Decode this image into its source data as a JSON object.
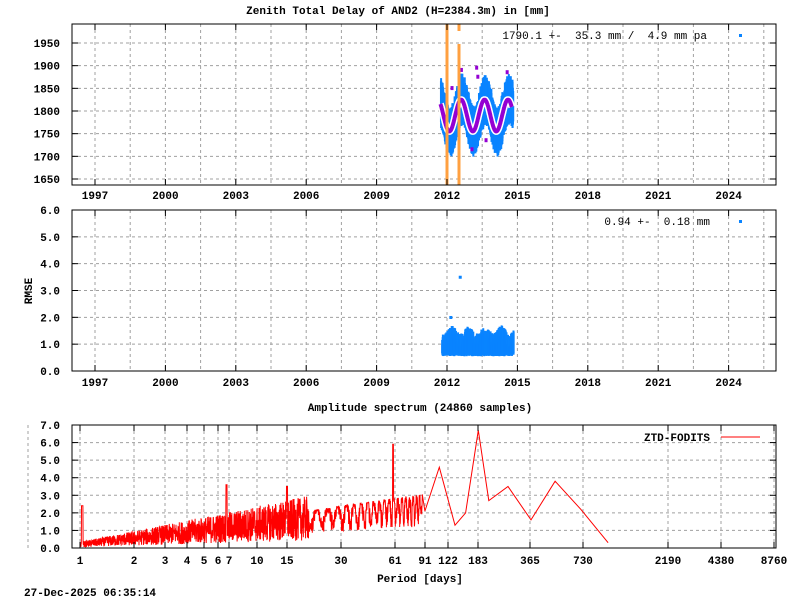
{
  "timestamp": "27-Dec-2025 06:35:14",
  "colors": {
    "ztd_points": "#0a84ff",
    "model_fit": "#9400d3",
    "break_lines": "#ffa040",
    "spectrum_line": "#ff0000"
  },
  "chart_data": [
    {
      "type": "scatter",
      "title": "Zenith Total Delay of AND2 (H=2384.3m) in [mm]",
      "xlabel": "",
      "ylabel": "",
      "x_ticks": [
        "1997",
        "2000",
        "2003",
        "2006",
        "2009",
        "2012",
        "2015",
        "2018",
        "2021",
        "2024"
      ],
      "y_ticks": [
        "1650",
        "1700",
        "1750",
        "1800",
        "1850",
        "1900",
        "1950"
      ],
      "ylim": [
        1640,
        1990
      ],
      "xlim": [
        1996,
        2026
      ],
      "grid": true,
      "legend": {
        "text": "1790.1 +-  35.3 mm /  4.9 mm pa",
        "position": "top-right"
      },
      "annotations": [
        {
          "type": "vertical-line",
          "x": 2012.0,
          "color": "#ffa040",
          "label": "break"
        },
        {
          "type": "vertical-line",
          "x": 2012.5,
          "color": "#ffa040",
          "label": "break"
        }
      ],
      "series": [
        {
          "name": "ZTD",
          "color": "#0a84ff",
          "x_range": [
            2011.7,
            2014.8
          ],
          "mean": 1790.1,
          "std": 35.3,
          "trend_mm_pa": 4.9,
          "y_range": [
            1700,
            1870
          ]
        },
        {
          "name": "Model (seasonal fit)",
          "color": "#9400d3",
          "x": [
            2011.8,
            2012.1,
            2012.35,
            2012.6,
            2012.85,
            2013.1,
            2013.35,
            2013.6,
            2013.85,
            2014.1,
            2014.35,
            2014.6,
            2014.75
          ],
          "values": [
            1800,
            1760,
            1790,
            1825,
            1790,
            1757,
            1790,
            1826,
            1790,
            1755,
            1790,
            1826,
            1820
          ]
        }
      ]
    },
    {
      "type": "scatter",
      "title": "",
      "xlabel": "",
      "ylabel": "RMSE",
      "x_ticks": [
        "1997",
        "2000",
        "2003",
        "2006",
        "2009",
        "2012",
        "2015",
        "2018",
        "2021",
        "2024"
      ],
      "y_ticks": [
        "0.0",
        "1.0",
        "2.0",
        "3.0",
        "4.0",
        "5.0",
        "6.0"
      ],
      "ylim": [
        0,
        6
      ],
      "xlim": [
        1996,
        2026
      ],
      "grid": true,
      "legend": {
        "text": "0.94 +-  0.18 mm",
        "position": "top-right"
      },
      "series": [
        {
          "name": "RMSE",
          "color": "#0a84ff",
          "x_range": [
            2011.7,
            2014.8
          ],
          "mean": 0.94,
          "std": 0.18,
          "y_range": [
            0.5,
            1.9
          ],
          "outliers": [
            {
              "x": 2012.5,
              "y": 3.55
            },
            {
              "x": 2012.1,
              "y": 2.05
            }
          ]
        }
      ]
    },
    {
      "type": "line",
      "title": "Amplitude spectrum (24860 samples)",
      "xlabel": "Period [days]",
      "ylabel": "",
      "x_scale": "log",
      "x_ticks": [
        "1",
        "2",
        "3",
        "4",
        "5",
        "6",
        "7",
        "10",
        "15",
        "30",
        "61",
        "91",
        "122",
        "183",
        "365",
        "730",
        "2190",
        "4380",
        "8760"
      ],
      "y_ticks": [
        "0.0",
        "1.0",
        "2.0",
        "3.0",
        "4.0",
        "5.0",
        "6.0",
        "7.0"
      ],
      "ylim": [
        0,
        7
      ],
      "xlim": [
        0.85,
        8760
      ],
      "grid": true,
      "legend": {
        "text": "ZTD-FODITS",
        "position": "top-right"
      },
      "series": [
        {
          "name": "ZTD-FODITS",
          "color": "#ff0000",
          "x": [
            1,
            1.05,
            2,
            3,
            4,
            5,
            6.8,
            10,
            15,
            20,
            25,
            30,
            40,
            50,
            61,
            70,
            80,
            91,
            110,
            135,
            155,
            183,
            210,
            270,
            365,
            500,
            700,
            1000
          ],
          "values": [
            0.3,
            2.4,
            0.6,
            1.0,
            1.3,
            1.6,
            3.6,
            2.2,
            3.5,
            4.5,
            4.2,
            4.3,
            3.7,
            4.2,
            5.9,
            2.5,
            4.5,
            2.1,
            4.6,
            1.3,
            2.0,
            6.7,
            2.7,
            3.5,
            1.6,
            3.8,
            2.2,
            0.3
          ]
        }
      ]
    }
  ]
}
